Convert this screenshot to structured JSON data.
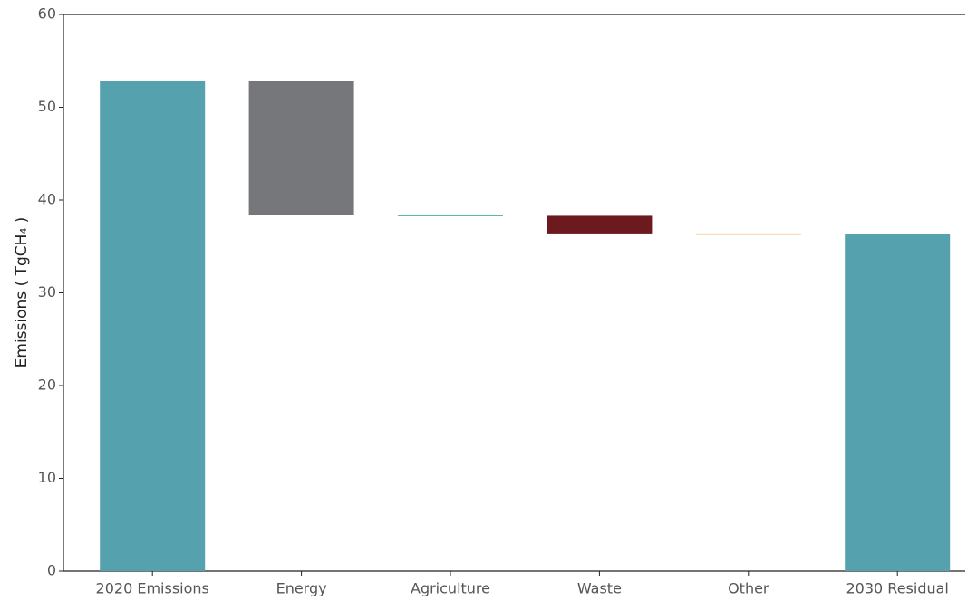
{
  "chart_data": {
    "type": "waterfall",
    "y_label": "Emissions ( TgCH₄ )",
    "categories": [
      "2020 Emissions",
      "Energy",
      "Agriculture",
      "Waste",
      "Other",
      "2030 Residual"
    ],
    "values": [
      52.8,
      -14.4,
      -0.1,
      -1.9,
      -0.1,
      36.3
    ],
    "is_total": [
      true,
      false,
      false,
      false,
      false,
      true
    ],
    "colors": [
      "#55a1ad",
      "#76777a",
      "#4daf9a",
      "#6d1a1e",
      "#f0b040",
      "#55a1ad"
    ],
    "ylim": [
      0,
      60
    ],
    "yticks": [
      0,
      10,
      20,
      30,
      40,
      50,
      60
    ],
    "grid": false
  }
}
